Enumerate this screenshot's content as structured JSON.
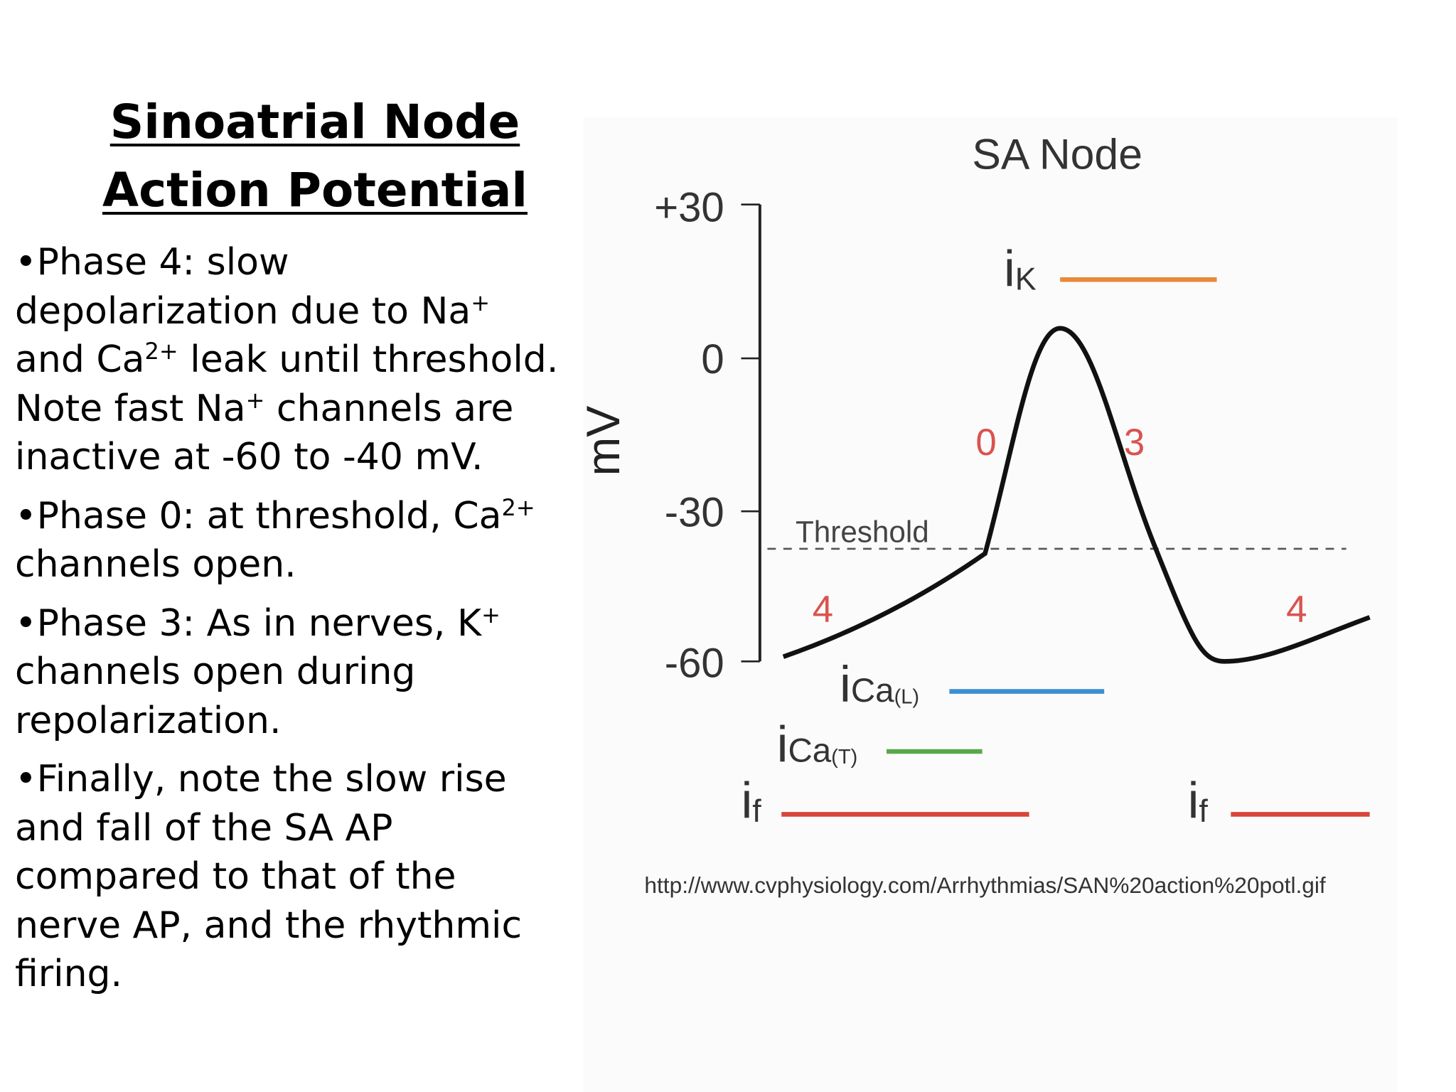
{
  "slide": {
    "title": [
      "Sinoatrial Node",
      "Action Potential"
    ],
    "bullets": [
      [
        {
          "t": "•Phase 4: slow depolarization due to Na"
        },
        {
          "sup": "+"
        },
        {
          "t": " and Ca"
        },
        {
          "sup": "2+"
        },
        {
          "t": " leak until threshold. Note fast Na"
        },
        {
          "sup": "+"
        },
        {
          "t": " channels are inactive at -60 to -40 mV."
        }
      ],
      [
        {
          "t": "•Phase 0: at threshold, Ca"
        },
        {
          "sup": "2+"
        },
        {
          "t": " channels open."
        }
      ],
      [
        {
          "t": "•Phase 3: As in nerves, K"
        },
        {
          "sup": "+"
        },
        {
          "t": " channels open during repolarization."
        }
      ],
      [
        {
          "t": "•Finally, note the slow rise and fall of the SA AP compared to that of the nerve AP, and the rhythmic firing."
        }
      ]
    ],
    "figure": {
      "title": "SA Node",
      "y_axis_label": "mV",
      "y_ticks": [
        "+30",
        "0",
        "-30",
        "-60"
      ],
      "threshold_label": "Threshold",
      "phase_labels": [
        "4",
        "0",
        "3",
        "4"
      ],
      "currents": [
        {
          "symbol": "i",
          "sub": "K"
        },
        {
          "symbol": "i",
          "sub": "Ca",
          "qualifier": "(L)"
        },
        {
          "symbol": "i",
          "sub": "Ca",
          "qualifier": "(T)"
        },
        {
          "symbol": "i",
          "sub": "f"
        },
        {
          "symbol": "i",
          "sub": "f"
        }
      ],
      "source": "http://www.cvphysiology.com/Arrhythmias/SAN%20action%20potl.gif"
    }
  }
}
